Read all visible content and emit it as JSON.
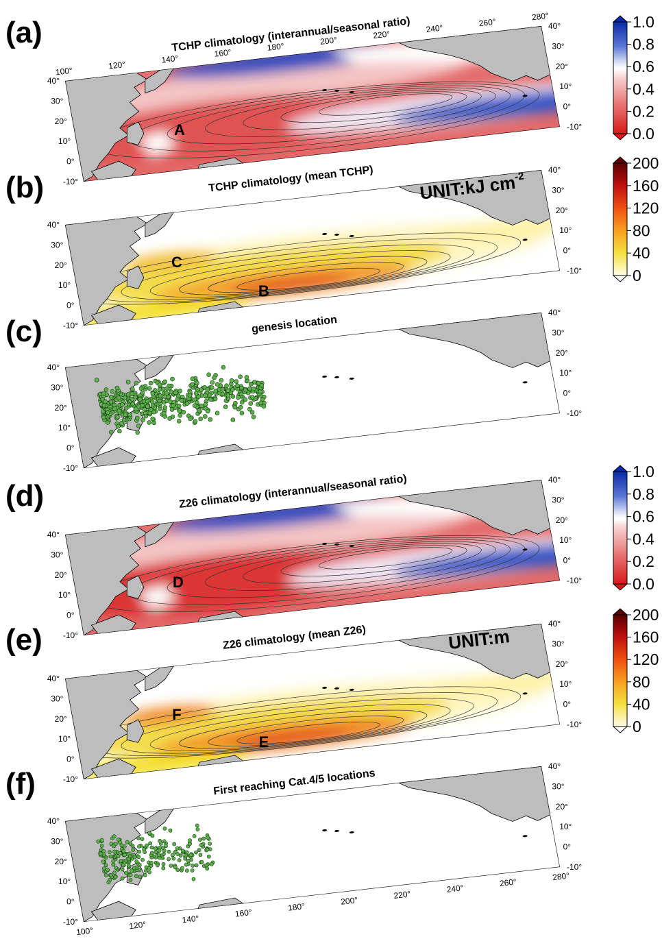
{
  "panels": [
    {
      "label": "(a)",
      "title": "TCHP climatology (interannual/seasonal ratio)",
      "markers": [
        "A"
      ]
    },
    {
      "label": "(b)",
      "title": "TCHP climatology (mean TCHP)",
      "markers": [
        "C",
        "B"
      ],
      "unit": "UNIT:kJ cm",
      "unit_sup": "-2"
    },
    {
      "label": "(c)",
      "title": "genesis location",
      "markers": []
    },
    {
      "label": "(d)",
      "title": "Z26 climatology (interannual/seasonal ratio)",
      "markers": [
        "D"
      ]
    },
    {
      "label": "(e)",
      "title": "Z26 climatology (mean Z26)",
      "markers": [
        "F",
        "E"
      ],
      "unit": "UNIT:m"
    },
    {
      "label": "(f)",
      "title": "First reaching Cat.4/5 locations",
      "markers": []
    }
  ],
  "colorbars": [
    {
      "ticks": [
        "1.0",
        "0.8",
        "0.6",
        "0.4",
        "0.2",
        "0.0"
      ]
    },
    {
      "ticks": [
        "200",
        "160",
        "120",
        "80",
        "40",
        "0"
      ]
    },
    {
      "ticks": [
        "1.0",
        "0.8",
        "0.6",
        "0.4",
        "0.2",
        "0.0"
      ]
    },
    {
      "ticks": [
        "200",
        "160",
        "120",
        "80",
        "40",
        "0"
      ]
    }
  ],
  "lat_ticks": [
    "40°",
    "30°",
    "20°",
    "10°",
    "0°",
    "-10°"
  ],
  "lon_ticks": [
    "100°",
    "120°",
    "140°",
    "160°",
    "180°",
    "200°",
    "220°",
    "240°",
    "260°",
    "280°"
  ]
}
